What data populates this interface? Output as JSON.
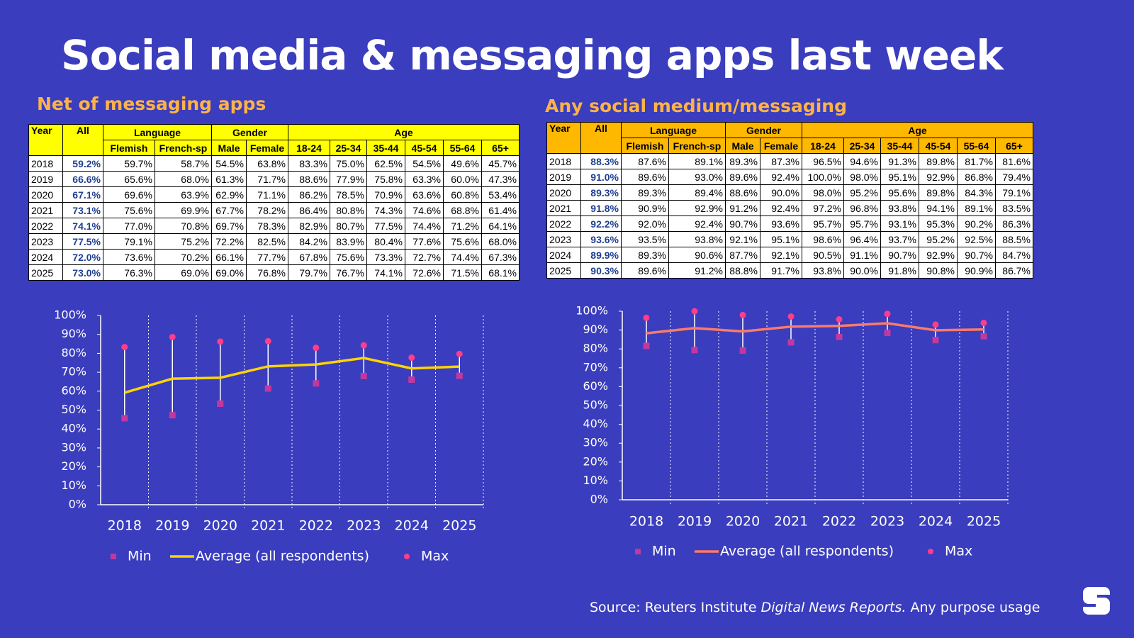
{
  "title": "Social media & messaging apps last week",
  "tables": [
    {
      "title": "Net of messaging apps",
      "header_color": "#ffff00",
      "groups": [
        "Year",
        "All",
        "Language",
        "Gender",
        "Age"
      ],
      "subheaders": [
        "Flemish",
        "French-sp",
        "Male",
        "Female",
        "18-24",
        "25-34",
        "35-44",
        "45-54",
        "55-64",
        "65+"
      ],
      "rows": [
        [
          "2018",
          "59.2%",
          "59.7%",
          "58.7%",
          "54.5%",
          "63.8%",
          "83.3%",
          "75.0%",
          "62.5%",
          "54.5%",
          "49.6%",
          "45.7%"
        ],
        [
          "2019",
          "66.6%",
          "65.6%",
          "68.0%",
          "61.3%",
          "71.7%",
          "88.6%",
          "77.9%",
          "75.8%",
          "63.3%",
          "60.0%",
          "47.3%"
        ],
        [
          "2020",
          "67.1%",
          "69.6%",
          "63.9%",
          "62.9%",
          "71.1%",
          "86.2%",
          "78.5%",
          "70.9%",
          "63.6%",
          "60.8%",
          "53.4%"
        ],
        [
          "2021",
          "73.1%",
          "75.6%",
          "69.9%",
          "67.7%",
          "78.2%",
          "86.4%",
          "80.8%",
          "74.3%",
          "74.6%",
          "68.8%",
          "61.4%"
        ],
        [
          "2022",
          "74.1%",
          "77.0%",
          "70.8%",
          "69.7%",
          "78.3%",
          "82.9%",
          "80.7%",
          "77.5%",
          "74.4%",
          "71.2%",
          "64.1%"
        ],
        [
          "2023",
          "77.5%",
          "79.1%",
          "75.2%",
          "72.2%",
          "82.5%",
          "84.2%",
          "83.9%",
          "80.4%",
          "77.6%",
          "75.6%",
          "68.0%"
        ],
        [
          "2024",
          "72.0%",
          "73.6%",
          "70.2%",
          "66.1%",
          "77.7%",
          "67.8%",
          "75.6%",
          "73.3%",
          "72.7%",
          "74.4%",
          "67.3%"
        ],
        [
          "2025",
          "73.0%",
          "76.3%",
          "69.0%",
          "69.0%",
          "76.8%",
          "79.7%",
          "76.7%",
          "74.1%",
          "72.6%",
          "71.5%",
          "68.1%"
        ]
      ]
    },
    {
      "title": "Any social medium/messaging",
      "header_color": "#ffb800",
      "groups": [
        "Year",
        "All",
        "Language",
        "Gender",
        "Age"
      ],
      "subheaders": [
        "Flemish",
        "French-sp",
        "Male",
        "Female",
        "18-24",
        "25-34",
        "35-44",
        "45-54",
        "55-64",
        "65+"
      ],
      "rows": [
        [
          "2018",
          "88.3%",
          "87.6%",
          "89.1%",
          "89.3%",
          "87.3%",
          "96.5%",
          "94.6%",
          "91.3%",
          "89.8%",
          "81.7%",
          "81.6%"
        ],
        [
          "2019",
          "91.0%",
          "89.6%",
          "93.0%",
          "89.6%",
          "92.4%",
          "100.0%",
          "98.0%",
          "95.1%",
          "92.9%",
          "86.8%",
          "79.4%"
        ],
        [
          "2020",
          "89.3%",
          "89.3%",
          "89.4%",
          "88.6%",
          "90.0%",
          "98.0%",
          "95.2%",
          "95.6%",
          "89.8%",
          "84.3%",
          "79.1%"
        ],
        [
          "2021",
          "91.8%",
          "90.9%",
          "92.9%",
          "91.2%",
          "92.4%",
          "97.2%",
          "96.8%",
          "93.8%",
          "94.1%",
          "89.1%",
          "83.5%"
        ],
        [
          "2022",
          "92.2%",
          "92.0%",
          "92.4%",
          "90.7%",
          "93.6%",
          "95.7%",
          "95.7%",
          "93.1%",
          "95.3%",
          "90.2%",
          "86.3%"
        ],
        [
          "2023",
          "93.6%",
          "93.5%",
          "93.8%",
          "92.1%",
          "95.1%",
          "98.6%",
          "96.4%",
          "93.7%",
          "95.2%",
          "92.5%",
          "88.5%"
        ],
        [
          "2024",
          "89.9%",
          "89.3%",
          "90.6%",
          "87.7%",
          "92.1%",
          "90.5%",
          "91.1%",
          "90.7%",
          "92.9%",
          "90.7%",
          "84.7%"
        ],
        [
          "2025",
          "90.3%",
          "89.6%",
          "91.2%",
          "88.8%",
          "91.7%",
          "93.8%",
          "90.0%",
          "91.8%",
          "90.8%",
          "90.9%",
          "86.7%"
        ]
      ]
    }
  ],
  "chart_data": [
    {
      "type": "line",
      "categories": [
        "2018",
        "2019",
        "2020",
        "2021",
        "2022",
        "2023",
        "2024",
        "2025"
      ],
      "ylim": [
        0,
        100
      ],
      "yticks": [
        {
          "value": 0,
          "label": "0%"
        },
        {
          "value": 10,
          "label": "10%"
        },
        {
          "value": 20,
          "label": "20%"
        },
        {
          "value": 30,
          "label": "30%"
        },
        {
          "value": 40,
          "label": "40%"
        },
        {
          "value": 50,
          "label": "50%"
        },
        {
          "value": 60,
          "label": "60%"
        },
        {
          "value": 70,
          "label": "70%"
        },
        {
          "value": 80,
          "label": "80%"
        },
        {
          "value": 90,
          "label": "90%"
        },
        {
          "value": 100,
          "label": "100%"
        }
      ],
      "whisker_color": "#ffffff",
      "series": [
        {
          "name": "Min",
          "color": "#c2389e",
          "marker": "square",
          "values": [
            45.7,
            47.3,
            53.4,
            61.4,
            64.1,
            68.0,
            66.1,
            68.1
          ]
        },
        {
          "name": "Average (all respondents)",
          "color": "#ffd400",
          "values": [
            59.2,
            66.6,
            67.1,
            73.1,
            74.1,
            77.5,
            72.0,
            73.0
          ]
        },
        {
          "name": "Max",
          "color": "#ff3d8b",
          "marker": "circle",
          "values": [
            83.3,
            88.6,
            86.2,
            86.4,
            82.9,
            84.2,
            77.7,
            79.7
          ]
        }
      ]
    },
    {
      "type": "line",
      "categories": [
        "2018",
        "2019",
        "2020",
        "2021",
        "2022",
        "2023",
        "2024",
        "2025"
      ],
      "ylim": [
        0,
        100
      ],
      "yticks": [
        {
          "value": 0,
          "label": "0%"
        },
        {
          "value": 10,
          "label": "10%"
        },
        {
          "value": 20,
          "label": "20%"
        },
        {
          "value": 30,
          "label": "30%"
        },
        {
          "value": 40,
          "label": "40%"
        },
        {
          "value": 50,
          "label": "50%"
        },
        {
          "value": 60,
          "label": "60%"
        },
        {
          "value": 70,
          "label": "70%"
        },
        {
          "value": 80,
          "label": "80%"
        },
        {
          "value": 90,
          "label": "90%"
        },
        {
          "value": 100,
          "label": "100%"
        }
      ],
      "whisker_color": "#ffffff",
      "series": [
        {
          "name": "Min",
          "color": "#c2389e",
          "marker": "square",
          "values": [
            81.6,
            79.4,
            79.1,
            83.5,
            86.3,
            88.5,
            84.7,
            86.7
          ]
        },
        {
          "name": "Average (all respondents)",
          "color": "#ff7a6a",
          "values": [
            88.3,
            91.0,
            89.3,
            91.8,
            92.2,
            93.6,
            89.9,
            90.3
          ]
        },
        {
          "name": "Max",
          "color": "#ff3d8b",
          "marker": "circle",
          "values": [
            96.5,
            100.0,
            98.0,
            97.2,
            95.7,
            98.6,
            92.9,
            93.8
          ]
        }
      ]
    }
  ],
  "source": [
    "Source: Reuters Institute",
    "Digital News Reports.",
    "Any purpose usage"
  ]
}
